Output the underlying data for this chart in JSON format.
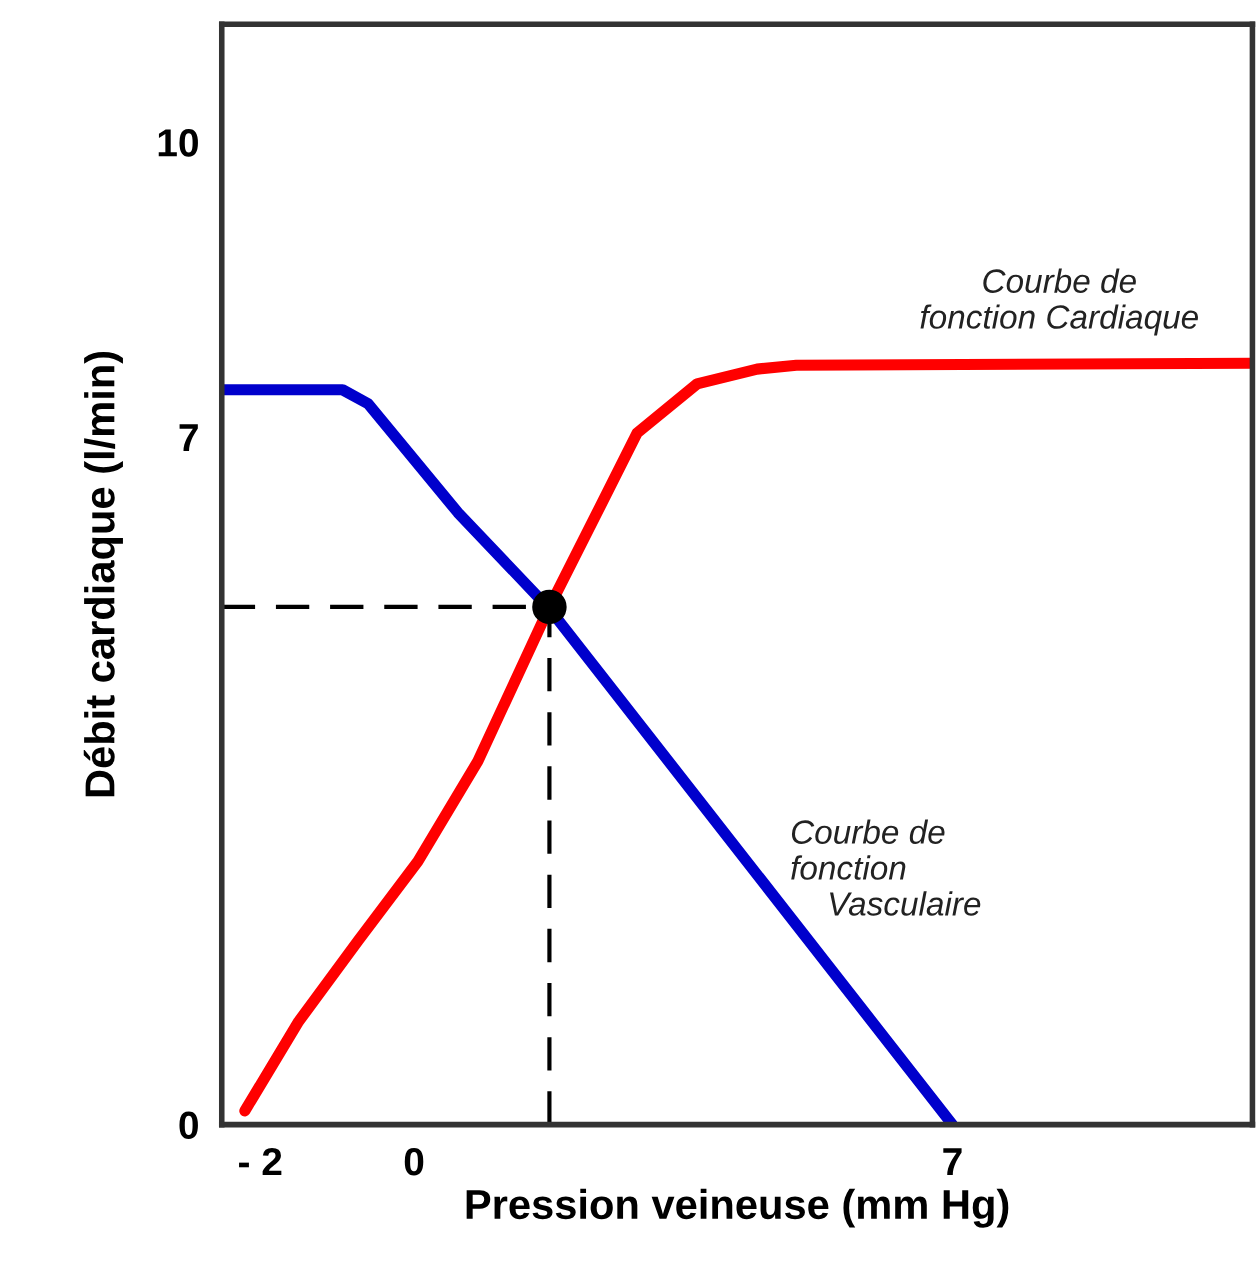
{
  "chart_data": {
    "type": "line",
    "xlabel": "Pression veineuse (mm Hg)",
    "ylabel": "Débit cardiaque (l/min)",
    "xlim": [
      -2.5,
      10.9
    ],
    "ylim": [
      0,
      11.2
    ],
    "xticks": [
      {
        "value": -2,
        "label": "- 2"
      },
      0,
      7
    ],
    "yticks": [
      0,
      7,
      10
    ],
    "grid": false,
    "legend": false,
    "line_style": "solid",
    "marker": "none",
    "series": [
      {
        "color": "#ff0000",
        "x": [
          -2.2,
          -1.5,
          -0.73,
          0.05,
          0.83,
          1.76,
          2.38,
          2.9,
          3.68,
          4.46,
          4.97,
          10.9
        ],
        "values": [
          0.14,
          1.05,
          1.87,
          2.68,
          3.7,
          5.27,
          6.23,
          7.04,
          7.54,
          7.69,
          7.73,
          7.75
        ]
      },
      {
        "color": "#0000cc",
        "x": [
          -2.5,
          -0.93,
          -0.6,
          0.57,
          1.76,
          7
        ],
        "values": [
          7.48,
          7.48,
          7.34,
          6.23,
          5.25,
          0
        ]
      },
      {
        "color": "#000000",
        "line_style": "dashed",
        "x": [
          -2.5,
          1.76
        ],
        "values": [
          5.27,
          5.27
        ]
      },
      {
        "color": "#000000",
        "line_style": "dashed",
        "x": [
          1.76,
          1.76
        ],
        "values": [
          0,
          5.27
        ]
      },
      {
        "type": "scatter",
        "color": "#000000",
        "marker": "circle",
        "x": [
          1.76
        ],
        "values": [
          5.27
        ]
      }
    ],
    "annotations": [
      {
        "text": "Courbe de\nfonction Cardiaque",
        "x": 8.1,
        "y": 7.75
      },
      {
        "text": "Courbe de\nfonction\n    Vasculaire",
        "x": 4.6,
        "y": 2.3
      }
    ]
  }
}
